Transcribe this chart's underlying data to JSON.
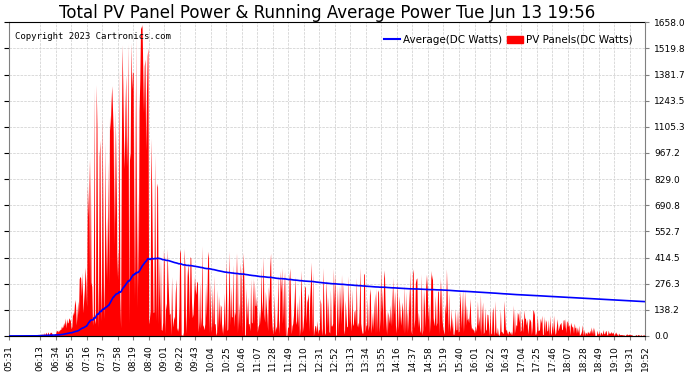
{
  "title": "Total PV Panel Power & Running Average Power Tue Jun 13 19:56",
  "copyright": "Copyright 2023 Cartronics.com",
  "legend_avg": "Average(DC Watts)",
  "legend_pv": "PV Panels(DC Watts)",
  "avg_color": "blue",
  "pv_color": "red",
  "bg_color": "#ffffff",
  "grid_color": "#cccccc",
  "ymin": 0.0,
  "ymax": 1658.0,
  "yticks": [
    0.0,
    138.2,
    276.3,
    414.5,
    552.7,
    690.8,
    829.0,
    967.2,
    1105.3,
    1243.5,
    1381.7,
    1519.8,
    1658.0
  ],
  "xtick_labels": [
    "05:31",
    "06:13",
    "06:34",
    "06:55",
    "07:16",
    "07:37",
    "07:58",
    "08:19",
    "08:40",
    "09:01",
    "09:22",
    "09:43",
    "10:04",
    "10:25",
    "10:46",
    "11:07",
    "11:28",
    "11:49",
    "12:10",
    "12:31",
    "12:52",
    "13:13",
    "13:34",
    "13:55",
    "14:16",
    "14:37",
    "14:58",
    "15:19",
    "15:40",
    "16:01",
    "16:22",
    "16:43",
    "17:04",
    "17:25",
    "17:46",
    "18:07",
    "18:28",
    "18:49",
    "19:10",
    "19:31",
    "19:52"
  ],
  "title_fontsize": 12,
  "tick_fontsize": 6.5,
  "copyright_fontsize": 6.5,
  "legend_fontsize": 7.5
}
